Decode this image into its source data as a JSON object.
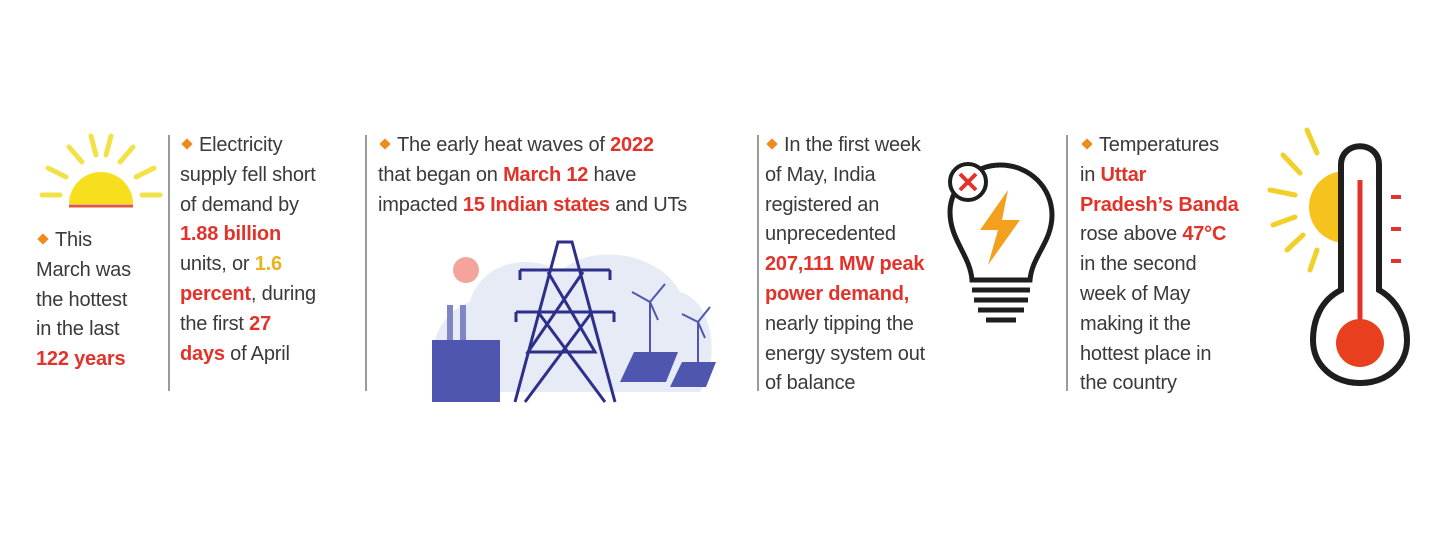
{
  "colors": {
    "text": "#3a3a3a",
    "highlight_red": "#e2332b",
    "highlight_yellow": "#e9b21e",
    "bullet": "#f08a1c"
  },
  "panels": [
    {
      "icon": "sun-icon",
      "lines": [
        [
          {
            "t": "This"
          }
        ],
        [
          {
            "t": "March was"
          }
        ],
        [
          {
            "t": "the hottest"
          }
        ],
        [
          {
            "t": "in the last"
          }
        ],
        [
          {
            "t": "122 years",
            "s": "hl"
          }
        ]
      ]
    },
    {
      "icon": null,
      "lines": [
        [
          {
            "t": "Electricity"
          }
        ],
        [
          {
            "t": "supply fell short"
          }
        ],
        [
          {
            "t": "of demand by"
          }
        ],
        [
          {
            "t": "1.88 billion",
            "s": "hl"
          }
        ],
        [
          {
            "t": "units, or "
          },
          {
            "t": "1.6",
            "s": "hly"
          }
        ],
        [
          {
            "t": "percent",
            "s": "hl"
          },
          {
            "t": ", during"
          }
        ],
        [
          {
            "t": "the first "
          },
          {
            "t": "27",
            "s": "hl"
          }
        ],
        [
          {
            "t": "days",
            "s": "hl"
          },
          {
            "t": " of April"
          }
        ]
      ]
    },
    {
      "icon": "power-grid-illustration",
      "lines": [
        [
          {
            "t": "The early heat waves of "
          },
          {
            "t": "2022",
            "s": "hl"
          }
        ],
        [
          {
            "t": "that began on "
          },
          {
            "t": "March 12",
            "s": "hl"
          },
          {
            "t": " have"
          }
        ],
        [
          {
            "t": "impacted "
          },
          {
            "t": "15 Indian states",
            "s": "hl"
          },
          {
            "t": " and UTs"
          }
        ]
      ]
    },
    {
      "icon": "light-bulb-failure-icon",
      "lines": [
        [
          {
            "t": "In the first week"
          }
        ],
        [
          {
            "t": "of May, India"
          }
        ],
        [
          {
            "t": "registered an"
          }
        ],
        [
          {
            "t": "unprecedented"
          }
        ],
        [
          {
            "t": "207,111 MW peak",
            "s": "hl"
          }
        ],
        [
          {
            "t": "power demand,",
            "s": "hl"
          }
        ],
        [
          {
            "t": "nearly tipping the"
          }
        ],
        [
          {
            "t": "energy system out"
          }
        ],
        [
          {
            "t": "of balance"
          }
        ]
      ]
    },
    {
      "icon": "thermometer-sun-icon",
      "lines": [
        [
          {
            "t": "Temperatures"
          }
        ],
        [
          {
            "t": "in "
          },
          {
            "t": "Uttar",
            "s": "hl"
          }
        ],
        [
          {
            "t": "Pradesh’s Banda",
            "s": "hl"
          }
        ],
        [
          {
            "t": "rose above "
          },
          {
            "t": "47°C",
            "s": "hl"
          }
        ],
        [
          {
            "t": "in the second"
          }
        ],
        [
          {
            "t": "week of May"
          }
        ],
        [
          {
            "t": "making it the"
          }
        ],
        [
          {
            "t": "hottest place in"
          }
        ],
        [
          {
            "t": "the country"
          }
        ]
      ]
    }
  ]
}
